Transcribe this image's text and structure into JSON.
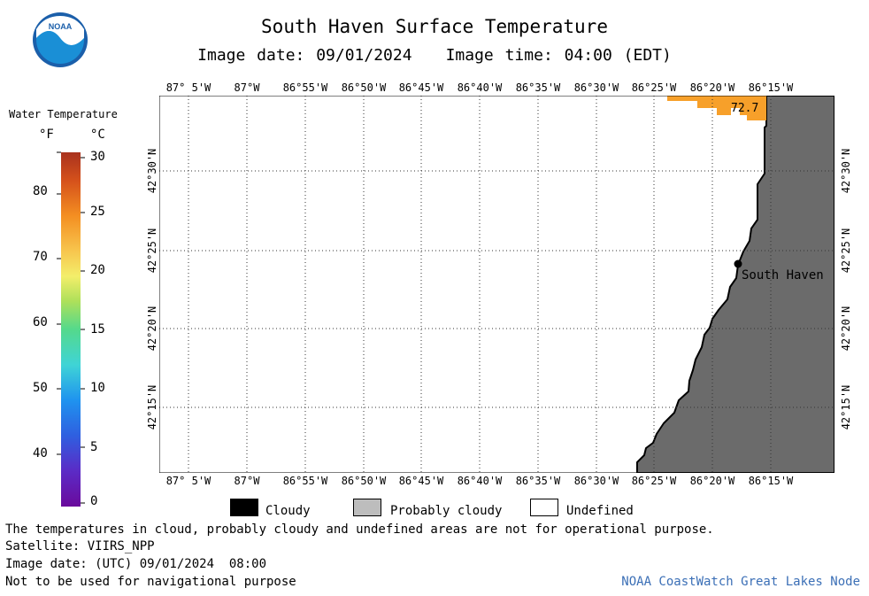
{
  "title": "South Haven Surface Temperature",
  "image_date": "Image date: 09/01/2024",
  "image_time": "Image time: 04:00 (EDT)",
  "logo_text": "NOAA",
  "legend": {
    "title": "Water Temperature",
    "unit_f": "°F",
    "unit_c": "°C",
    "f_ticks": [
      "80",
      "70",
      "60",
      "50",
      "40"
    ],
    "c_ticks": [
      "30",
      "25",
      "20",
      "15",
      "10",
      "5",
      "0"
    ]
  },
  "lon_labels": [
    "87° 5'W",
    "87°W",
    "86°55'W",
    "86°50'W",
    "86°45'W",
    "86°40'W",
    "86°35'W",
    "86°30'W",
    "86°25'W",
    "86°20'W",
    "86°15'W"
  ],
  "lat_labels": [
    "42°30'N",
    "42°25'N",
    "42°20'N",
    "42°15'N"
  ],
  "place_label": "South Haven",
  "temp_label": "72.7",
  "key": {
    "cloudy": "Cloudy",
    "probably_cloudy": "Probably cloudy",
    "undefined": "Undefined"
  },
  "footer": {
    "line1": "The temperatures in cloud, probably cloudy and undefined areas are not for operational purpose.",
    "line2": "Satellite: VIIRS_NPP",
    "line3": "Image date: (UTC) 09/01/2024  08:00",
    "line4": "Not to be used for navigational purpose",
    "credit": "NOAA CoastWatch Great Lakes Node"
  },
  "colors": {
    "land": "#6b6b6b",
    "warm_water": "#f7a02a",
    "cloudy": "#000000",
    "probably_cloudy": "#bdbdbd",
    "undefined": "#ffffff",
    "credit": "#3b6fb6"
  }
}
